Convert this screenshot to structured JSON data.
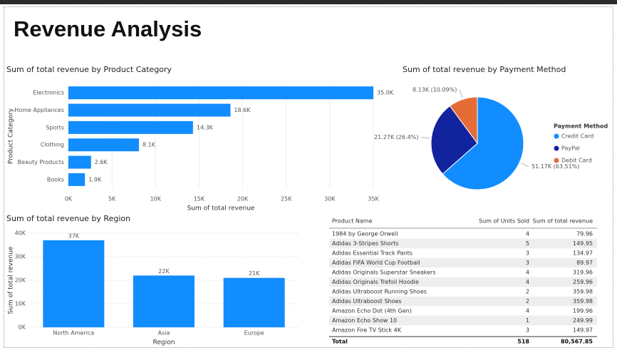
{
  "title": "Revenue Analysis",
  "chart_data": [
    {
      "type": "hbar",
      "title": "Sum of total revenue by Product Category",
      "x_label": "Sum of total revenue",
      "y_label": "Product Category",
      "categories": [
        "Electronics",
        "Home Appliances",
        "Sports",
        "Clothing",
        "Beauty Products",
        "Books"
      ],
      "values": [
        35000,
        18600,
        14300,
        8100,
        2600,
        1900
      ],
      "value_labels": [
        "35.0K",
        "18.6K",
        "14.3K",
        "8.1K",
        "2.6K",
        "1.9K"
      ],
      "color": "#118DFF",
      "xlim": [
        0,
        35000
      ],
      "xticks": [
        {
          "value": 0,
          "label": "0K"
        },
        {
          "value": 5000,
          "label": "5K"
        },
        {
          "value": 10000,
          "label": "10K"
        },
        {
          "value": 15000,
          "label": "15K"
        },
        {
          "value": 20000,
          "label": "20K"
        },
        {
          "value": 25000,
          "label": "25K"
        },
        {
          "value": 30000,
          "label": "30K"
        },
        {
          "value": 35000,
          "label": "35K"
        }
      ],
      "grid": true
    },
    {
      "type": "pie",
      "title": "Sum of total revenue by Payment Method",
      "legend_title": "Payment Method",
      "categories": [
        "Credit Card",
        "PayPal",
        "Debit Card"
      ],
      "values": [
        51170,
        21270,
        8130
      ],
      "value_labels": [
        "51.17K (63.51%)",
        "21.27K (26.4%)",
        "8.13K (10.09%)"
      ],
      "colors": [
        "#118DFF",
        "#12239E",
        "#E66C37"
      ],
      "legend": "right"
    },
    {
      "type": "bar",
      "title": "Sum of total revenue by Region",
      "x_label": "Region",
      "y_label": "Sum of total revenue",
      "categories": [
        "North America",
        "Asia",
        "Europe"
      ],
      "values": [
        37000,
        22000,
        21000
      ],
      "value_labels": [
        "37K",
        "22K",
        "21K"
      ],
      "color": "#118DFF",
      "ylim": [
        0,
        40000
      ],
      "yticks": [
        {
          "value": 0,
          "label": "0K"
        },
        {
          "value": 10000,
          "label": "10K"
        },
        {
          "value": 20000,
          "label": "20K"
        },
        {
          "value": 30000,
          "label": "30K"
        },
        {
          "value": 40000,
          "label": "40K"
        }
      ],
      "grid": true
    }
  ],
  "table": {
    "columns": [
      "Product Name",
      "Sum of Units Sold",
      "Sum of total revenue"
    ],
    "rows": [
      [
        "1984 by George Orwell",
        4,
        79.96
      ],
      [
        "Adidas 3-Stripes Shorts",
        5,
        149.95
      ],
      [
        "Adidas Essential Track Pants",
        3,
        134.97
      ],
      [
        "Adidas FIFA World Cup Football",
        3,
        89.97
      ],
      [
        "Adidas Originals Superstar Sneakers",
        4,
        319.96
      ],
      [
        "Adidas Originals Trefoil Hoodie",
        4,
        259.96
      ],
      [
        "Adidas Ultraboost Running Shoes",
        2,
        359.98
      ],
      [
        "Adidas Ultraboost Shoes",
        2,
        359.98
      ],
      [
        "Amazon Echo Dot (4th Gen)",
        4,
        199.96
      ],
      [
        "Amazon Echo Show 10",
        1,
        249.99
      ],
      [
        "Amazon Fire TV Stick 4K",
        3,
        149.97
      ]
    ],
    "total": [
      "Total",
      518,
      "80,567.85"
    ]
  }
}
